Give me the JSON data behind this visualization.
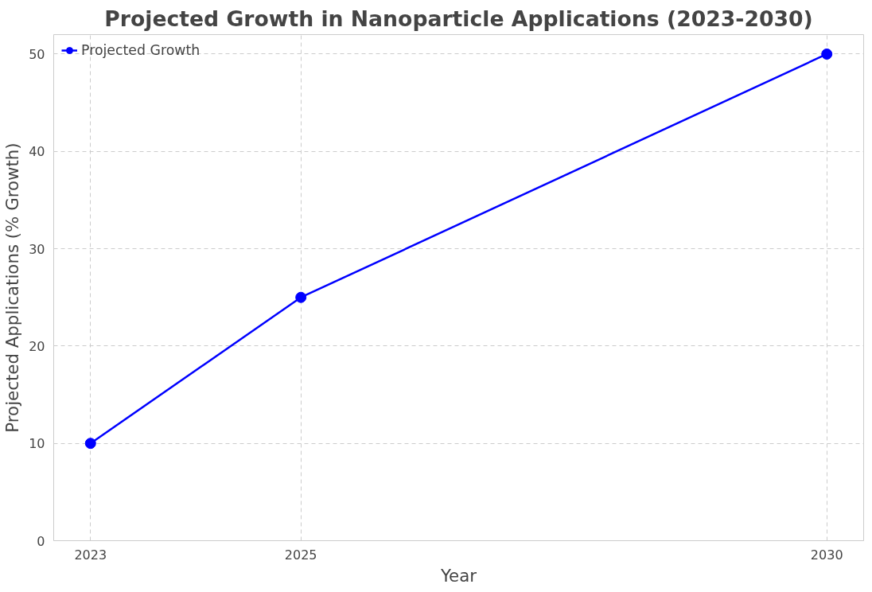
{
  "chart_data": {
    "type": "line",
    "title": "Projected Growth in Nanoparticle Applications (2023-2030)",
    "xlabel": "Year",
    "ylabel": "Projected Applications (% Growth)",
    "x": [
      2023,
      2025,
      2030
    ],
    "series": [
      {
        "name": "Projected Growth",
        "color": "#0000ff",
        "values": [
          10,
          25,
          50
        ]
      }
    ],
    "xlim": [
      2022.65,
      2030.35
    ],
    "ylim": [
      0,
      52
    ],
    "xticks": [
      2023,
      2025,
      2030
    ],
    "yticks": [
      0,
      10,
      20,
      30,
      40,
      50
    ],
    "grid": true,
    "legend": "top left",
    "marker": "circle",
    "line_style": "solid"
  }
}
